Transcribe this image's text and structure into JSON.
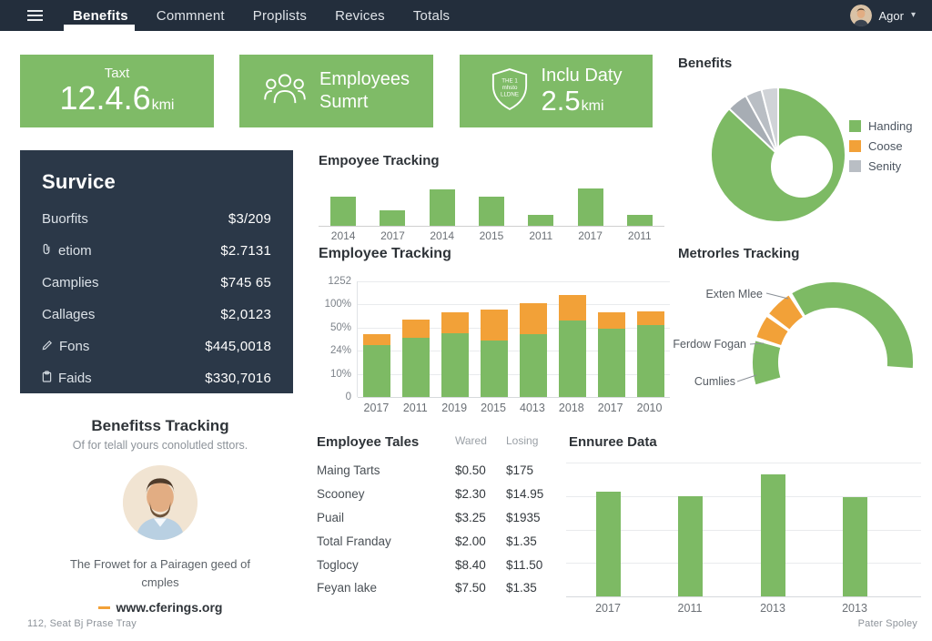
{
  "colors": {
    "green": "#7dba64",
    "orange": "#f2a138",
    "navy": "#232e3c",
    "panel": "#2b3848",
    "gray": "#b9bec4"
  },
  "nav": {
    "items": [
      "Benefits",
      "Commnent",
      "Proplists",
      "Revices",
      "Totals"
    ],
    "active": "Benefits",
    "user": "Agor"
  },
  "cards": [
    {
      "label": "Taxt",
      "value": "12.4.6",
      "suffix": "kmi"
    },
    {
      "icon": "people-icon",
      "line1": "Employees",
      "line2": "Sumrt"
    },
    {
      "icon": "shield-icon",
      "label": "Inclu Daty",
      "value": "2.5",
      "suffix": "kmi",
      "shield_text": [
        "THE 1",
        "mhsto",
        "LLDNE"
      ]
    }
  ],
  "survice": {
    "title": "Survice",
    "rows": [
      {
        "label": "Buorfits",
        "value": "$3/209"
      },
      {
        "label": "etiom",
        "value": "$2.7131",
        "icon": "paperclip"
      },
      {
        "label": "Camplies",
        "value": "$745 65"
      },
      {
        "label": "Callages",
        "value": "$2,0123"
      },
      {
        "label": "Fons",
        "value": "$445,0018",
        "icon": "pencil"
      },
      {
        "label": "Faids",
        "value": "$330,7016",
        "icon": "clipboard"
      }
    ]
  },
  "profile": {
    "title": "Benefitss Tracking",
    "subtitle": "Of for telall yours conolutled sttors.",
    "line1": "The Frowet for a Pairagen geed of",
    "line2": "cmples",
    "link": "www.cferings.org"
  },
  "table": {
    "title": "Employee Tales",
    "columns": [
      "Wared",
      "Losing"
    ],
    "rows": [
      {
        "label": "Maing Tarts",
        "wared": "$0.50",
        "losing": "$175"
      },
      {
        "label": "Scooney",
        "wared": "$2.30",
        "losing": "$14.95"
      },
      {
        "label": "Puail",
        "wared": "$3.25",
        "losing": "$1935"
      },
      {
        "label": "Total Franday",
        "wared": "$2.00",
        "losing": "$1.35"
      },
      {
        "label": "Toglocy",
        "wared": "$8.40",
        "losing": "$11.50"
      },
      {
        "label": "Feyan lake",
        "wared": "$7.50",
        "losing": "$1.35"
      }
    ]
  },
  "footer": {
    "left": "112, Seat Bj Prase Tray",
    "right": "Pater Spoley"
  },
  "chart_data": [
    {
      "id": "benefits-donut",
      "type": "pie",
      "title": "Benefits",
      "donut": true,
      "slices": [
        {
          "label": "Handing",
          "value": 87,
          "color": "#7dba64"
        },
        {
          "label": "Senity",
          "value": 5,
          "color": "#a7adb4"
        },
        {
          "label": "Senity",
          "value": 4,
          "color": "#b9bec4"
        },
        {
          "label": "Senity",
          "value": 4,
          "color": "#d0d3d7"
        }
      ],
      "legend": [
        {
          "label": "Handing",
          "color": "#7dba64"
        },
        {
          "label": "Coose",
          "color": "#f2a138"
        },
        {
          "label": "Senity",
          "color": "#b9bec4"
        }
      ],
      "legend_position": "right"
    },
    {
      "id": "empoyee-mini",
      "type": "bar",
      "title": "Empoyee Tracking",
      "categories": [
        "2014",
        "2017",
        "2014",
        "2015",
        "2011",
        "2017",
        "2011"
      ],
      "values": [
        65,
        35,
        80,
        65,
        25,
        82,
        24
      ],
      "ylim": [
        0,
        100
      ],
      "grid": false
    },
    {
      "id": "employee-stacked",
      "type": "bar",
      "stacked": true,
      "title": "Employee Tracking",
      "categories": [
        "2017",
        "2011",
        "2019",
        "2015",
        "4013",
        "2018",
        "2017",
        "2010"
      ],
      "y_ticks": [
        "1252",
        "100%",
        "50%",
        "24%",
        "10%",
        "0"
      ],
      "ylim": [
        0,
        100
      ],
      "grid": true,
      "series": [
        {
          "name": "green",
          "color": "#7dba64",
          "values": [
            45,
            51,
            55,
            49,
            54,
            66,
            59,
            62
          ]
        },
        {
          "name": "orange",
          "color": "#f2a138",
          "values": [
            9,
            16,
            18,
            27,
            27,
            22,
            14,
            12
          ]
        }
      ]
    },
    {
      "id": "metrorles-gauge",
      "type": "gauge",
      "title": "Metrorles Tracking",
      "segments": [
        {
          "label": "Cumlies",
          "from": 196,
          "to": 164.5,
          "color": "#7dba64"
        },
        {
          "label": "Ferdow Fogan",
          "from": 161.5,
          "to": 145.5,
          "color": "#f2a138"
        },
        {
          "label": "Exten Mlee",
          "from": 142.5,
          "to": 123.5,
          "color": "#f2a138"
        },
        {
          "label": "",
          "from": 120.5,
          "to": -4,
          "color": "#7dba64"
        }
      ],
      "labels": [
        {
          "text": "Exten Mlee"
        },
        {
          "text": "Ferdow Fogan"
        },
        {
          "text": "Cumlies"
        }
      ]
    },
    {
      "id": "ennuree",
      "type": "bar",
      "title": "Ennuree Data",
      "categories": [
        "2017",
        "2011",
        "2013",
        "2013"
      ],
      "values": [
        78,
        75,
        91,
        74
      ],
      "ylim": [
        0,
        100
      ],
      "grid": true
    }
  ]
}
